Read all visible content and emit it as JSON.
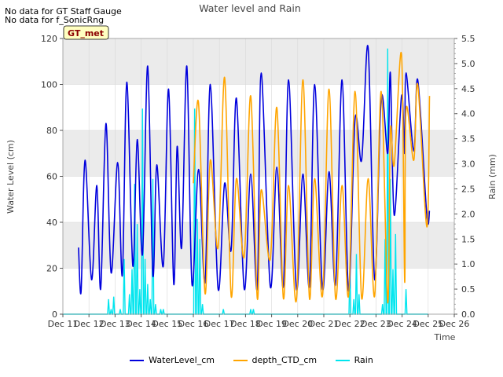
{
  "notes": [
    "No data for GT Staff Gauge",
    "No data for f_SonicRng"
  ],
  "badge": "GT_met",
  "colors": {
    "water": "#0000dd",
    "depth": "#ffa500",
    "rain": "#00e5ee",
    "band": "#ebebeb",
    "badge_bg": "#ffffc0",
    "badge_text": "#8b0000"
  },
  "chart_data": {
    "type": "line",
    "title": "Water level and Rain",
    "xlabel": "Time",
    "ylabel": "Water Level (cm)",
    "y2label": "Rain (mm)",
    "xlim": [
      11,
      26
    ],
    "ylim": [
      0,
      120
    ],
    "y2lim": [
      0,
      5.5
    ],
    "x_ticks": [
      "Dec 11",
      "Dec 12",
      "Dec 13",
      "Dec 14",
      "Dec 15",
      "Dec 16",
      "Dec 17",
      "Dec 18",
      "Dec 19",
      "Dec 20",
      "Dec 21",
      "Dec 22",
      "Dec 23",
      "Dec 24",
      "Dec 25",
      "Dec 26"
    ],
    "y_ticks": [
      0,
      20,
      40,
      60,
      80,
      100,
      120
    ],
    "y2_ticks": [
      "0.0",
      "0.5",
      "1.0",
      "1.5",
      "2.0",
      "2.5",
      "3.0",
      "3.5",
      "4.0",
      "4.5",
      "5.0",
      "5.5"
    ],
    "legend": [
      "WaterLevel_cm",
      "depth_CTD_cm",
      "Rain"
    ],
    "legend_position": "bottom-center",
    "series": [
      {
        "name": "WaterLevel_cm",
        "x": [
          11.6,
          11.7,
          11.85,
          12.1,
          12.3,
          12.45,
          12.65,
          12.85,
          13.1,
          13.28,
          13.45,
          13.68,
          13.85,
          14.05,
          14.25,
          14.45,
          14.6,
          14.85,
          15.05,
          15.25,
          15.38,
          15.55,
          15.75,
          15.95,
          16.2,
          16.45,
          16.65,
          16.95,
          17.2,
          17.45,
          17.65,
          17.95,
          18.2,
          18.45,
          18.6,
          18.95,
          19.2,
          19.45,
          19.65,
          19.95,
          20.2,
          20.45,
          20.65,
          20.95,
          21.2,
          21.45,
          21.7,
          21.95,
          22.2,
          22.45,
          22.7,
          22.95,
          23.2,
          23.45,
          23.55,
          23.7,
          23.98,
          24.1,
          24.15,
          24.45,
          24.6,
          24.95,
          25.05
        ],
        "values": [
          29,
          10,
          67,
          15,
          56,
          11,
          83,
          18,
          66,
          17,
          101,
          21,
          76,
          26,
          108,
          17,
          65,
          21,
          98,
          13,
          73,
          29,
          108,
          13,
          63,
          14,
          100,
          11,
          57,
          28,
          94,
          11,
          61,
          11,
          105,
          12,
          64,
          12,
          102,
          11,
          61,
          12,
          100,
          11,
          62,
          13,
          102,
          10,
          85,
          67,
          116,
          15,
          94,
          70,
          105,
          43,
          95,
          70,
          105,
          71,
          102,
          43,
          45
        ]
      },
      {
        "name": "depth_CTD_cm",
        "x": [
          16.0,
          16.2,
          16.45,
          16.65,
          16.95,
          17.2,
          17.45,
          17.65,
          17.95,
          18.2,
          18.45,
          18.6,
          18.95,
          19.2,
          19.45,
          19.65,
          19.95,
          20.2,
          20.45,
          20.65,
          20.95,
          21.2,
          21.45,
          21.7,
          21.95,
          22.2,
          22.45,
          22.7,
          22.95,
          23.2,
          23.45,
          23.55,
          23.7,
          23.98,
          24.1,
          24.15,
          24.45,
          24.6,
          24.95,
          25.05
        ],
        "values": [
          57,
          92,
          9,
          67,
          29,
          103,
          8,
          59,
          25,
          95,
          7,
          54,
          24,
          90,
          7,
          56,
          6,
          102,
          7,
          59,
          8,
          98,
          7,
          56,
          8,
          97,
          7,
          59,
          8,
          97,
          5,
          80,
          65,
          113,
          14,
          89,
          67,
          100,
          38,
          95
        ]
      },
      {
        "name": "Rain",
        "axis": "right",
        "x": [
          12.75,
          12.85,
          12.95,
          13.2,
          13.35,
          13.55,
          13.65,
          13.75,
          13.85,
          13.95,
          14.05,
          14.15,
          14.25,
          14.35,
          14.45,
          14.55,
          14.75,
          14.85,
          16.05,
          16.15,
          16.25,
          16.35,
          17.15,
          18.2,
          18.3,
          22.0,
          22.15,
          22.25,
          22.35,
          23.25,
          23.35,
          23.45,
          23.55,
          23.65,
          23.75,
          24.15
        ],
        "values": [
          0.3,
          0.1,
          0.35,
          0.1,
          1.1,
          0.4,
          0.9,
          2.6,
          1.8,
          0.5,
          4.1,
          1.1,
          0.6,
          0.3,
          2.7,
          0.2,
          0.1,
          0.1,
          4.1,
          1.9,
          1.5,
          0.2,
          0.1,
          0.1,
          0.1,
          1.0,
          0.3,
          1.2,
          0.4,
          0.2,
          1.5,
          5.3,
          2.7,
          0.9,
          1.6,
          0.5
        ]
      }
    ]
  }
}
